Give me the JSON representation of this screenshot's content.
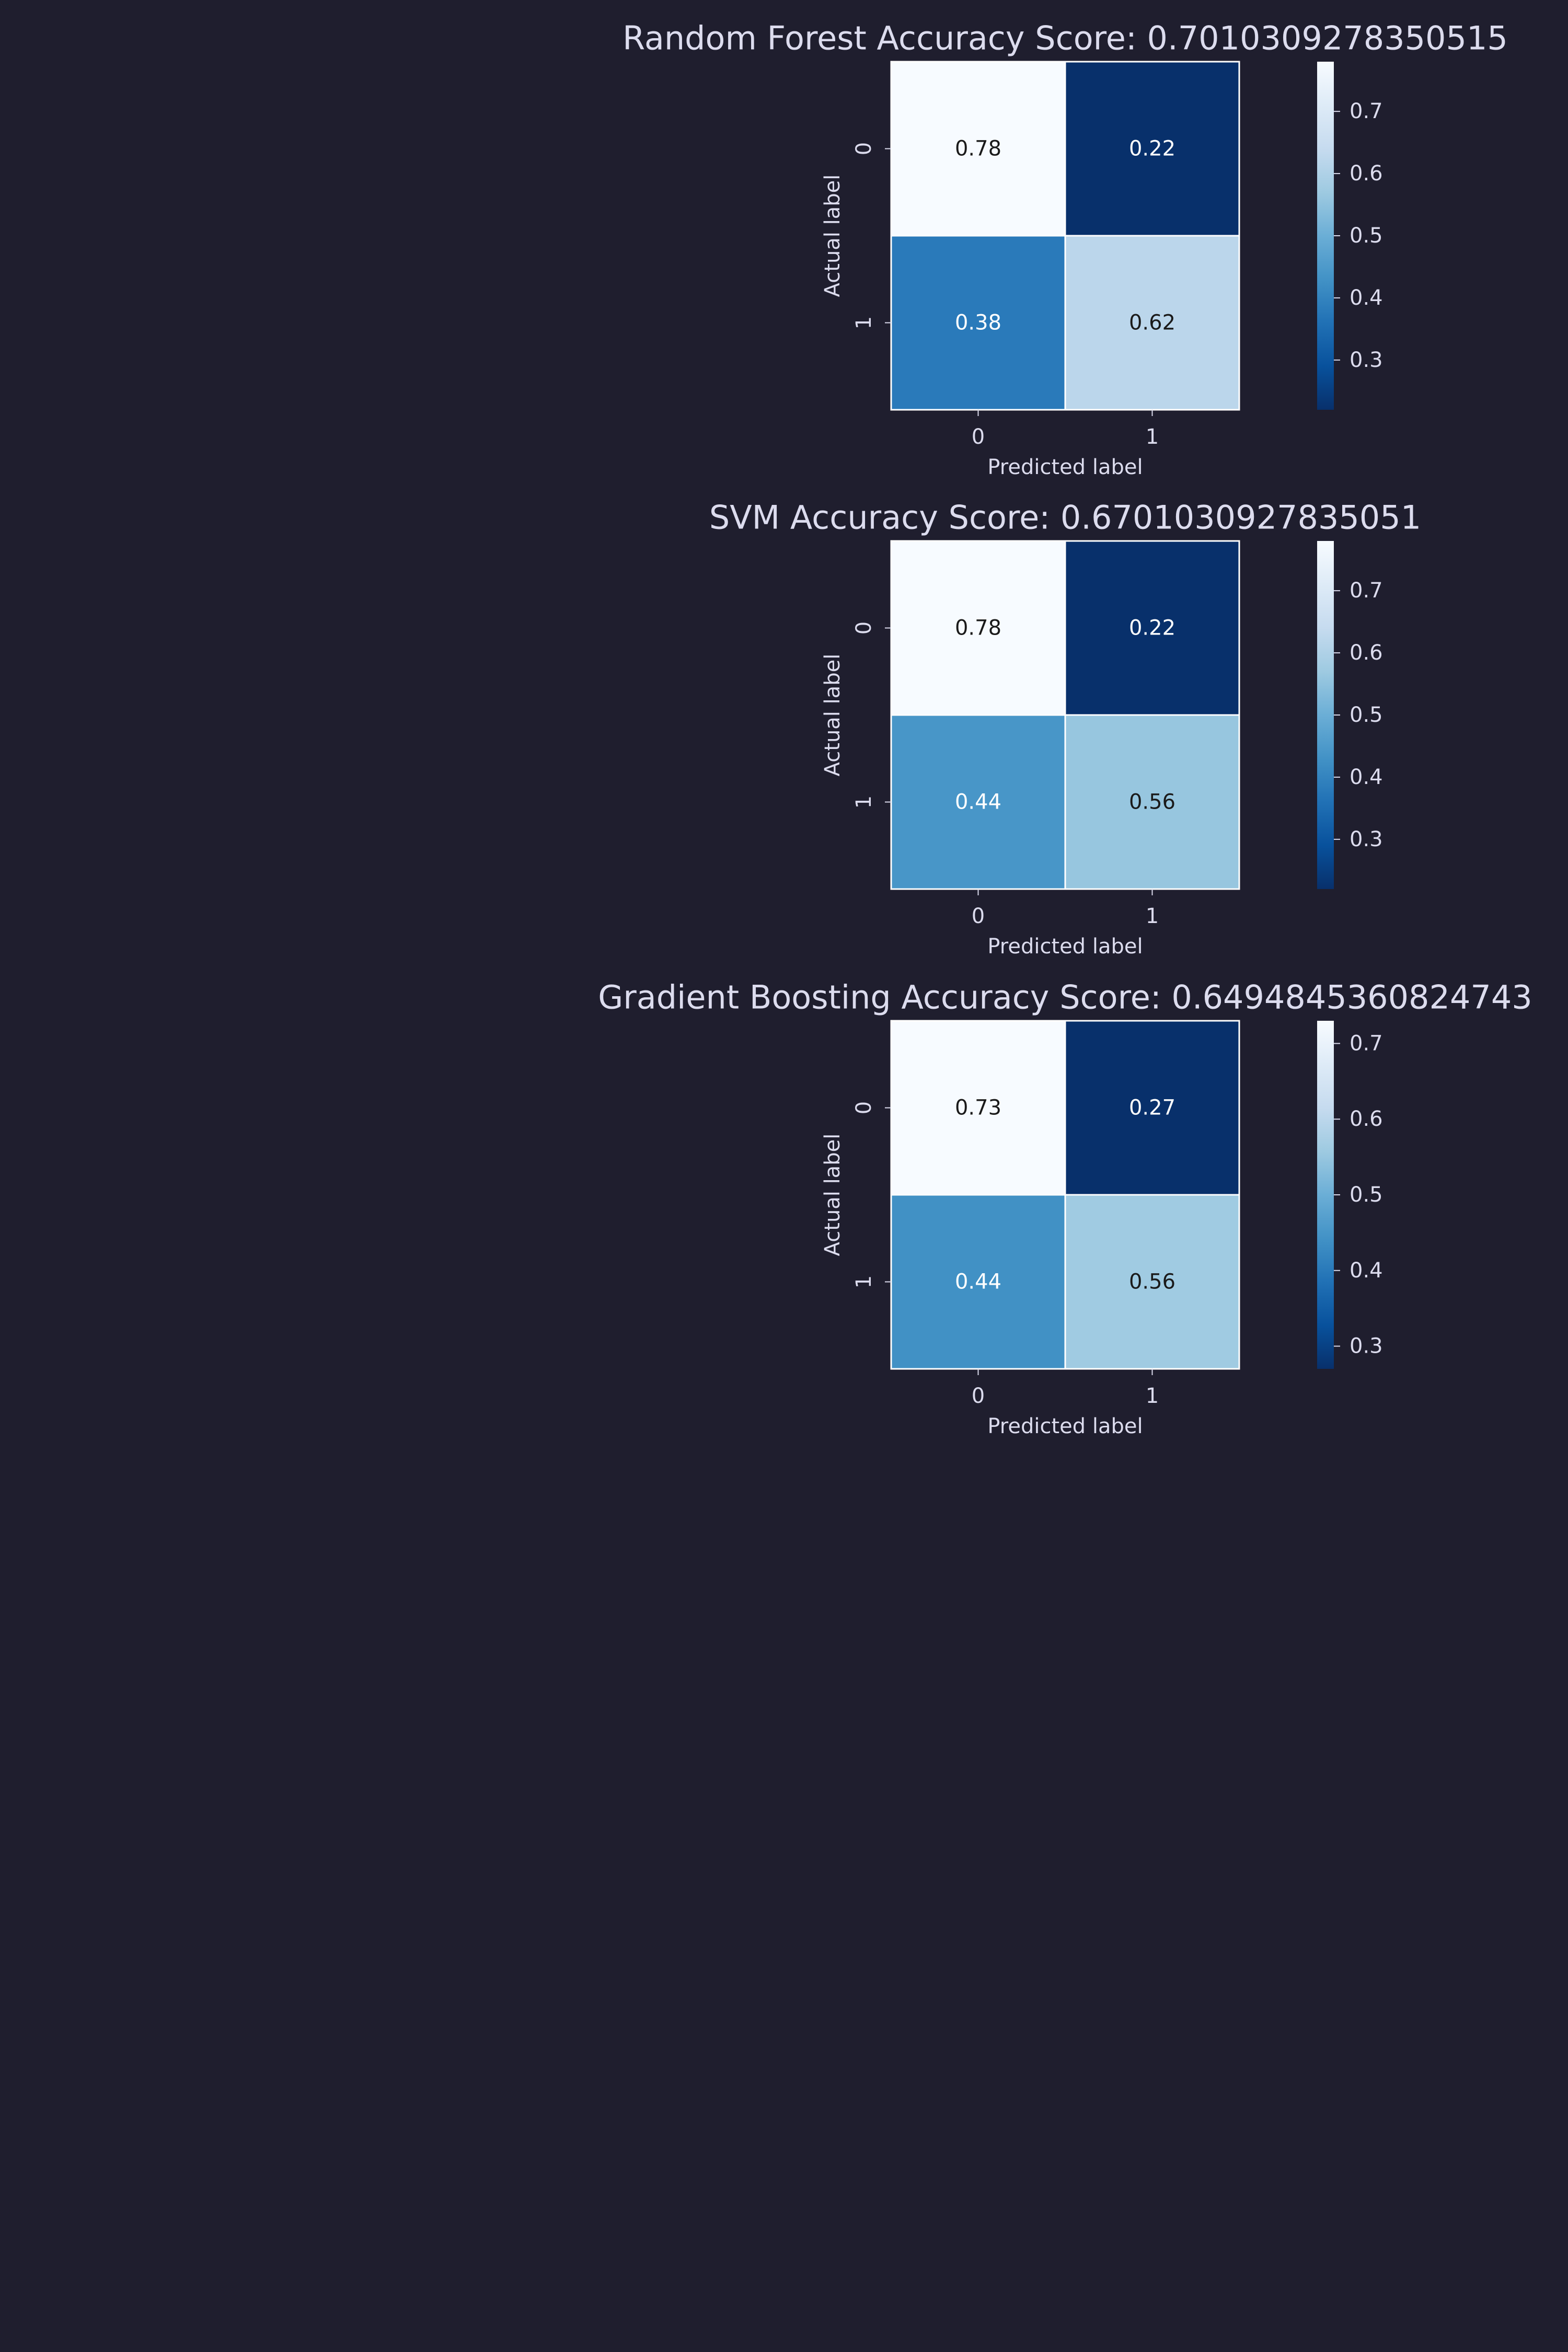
{
  "colors": {
    "background": "#1f1e2e",
    "text": "#dcdcee",
    "colormap": "Blues",
    "cell_border": "#ffffff"
  },
  "chart_data": [
    {
      "type": "heatmap",
      "title": "Random Forest Accuracy Score: 0.7010309278350515",
      "xlabel": "Predicted label",
      "ylabel": "Actual label",
      "x_categories": [
        "0",
        "1"
      ],
      "y_categories": [
        "0",
        "1"
      ],
      "values": [
        [
          0.78,
          0.22
        ],
        [
          0.38,
          0.62
        ]
      ],
      "value_labels": [
        [
          "0.78",
          "0.22"
        ],
        [
          "0.38",
          "0.62"
        ]
      ],
      "colorbar": {
        "range": [
          0.22,
          0.78
        ],
        "ticks": [
          "0.3",
          "0.4",
          "0.5",
          "0.6",
          "0.7"
        ]
      },
      "grid": false,
      "legend": "colorbar-right"
    },
    {
      "type": "heatmap",
      "title": "SVM Accuracy Score: 0.6701030927835051",
      "xlabel": "Predicted label",
      "ylabel": "Actual label",
      "x_categories": [
        "0",
        "1"
      ],
      "y_categories": [
        "0",
        "1"
      ],
      "values": [
        [
          0.78,
          0.22
        ],
        [
          0.44,
          0.56
        ]
      ],
      "value_labels": [
        [
          "0.78",
          "0.22"
        ],
        [
          "0.44",
          "0.56"
        ]
      ],
      "colorbar": {
        "range": [
          0.22,
          0.78
        ],
        "ticks": [
          "0.3",
          "0.4",
          "0.5",
          "0.6",
          "0.7"
        ]
      },
      "grid": false,
      "legend": "colorbar-right"
    },
    {
      "type": "heatmap",
      "title": "Gradient Boosting Accuracy Score: 0.6494845360824743",
      "xlabel": "Predicted label",
      "ylabel": "Actual label",
      "x_categories": [
        "0",
        "1"
      ],
      "y_categories": [
        "0",
        "1"
      ],
      "values": [
        [
          0.73,
          0.27
        ],
        [
          0.44,
          0.56
        ]
      ],
      "value_labels": [
        [
          "0.73",
          "0.27"
        ],
        [
          "0.44",
          "0.56"
        ]
      ],
      "colorbar": {
        "range": [
          0.27,
          0.73
        ],
        "ticks": [
          "0.3",
          "0.4",
          "0.5",
          "0.6",
          "0.7"
        ]
      },
      "grid": false,
      "legend": "colorbar-right"
    }
  ]
}
